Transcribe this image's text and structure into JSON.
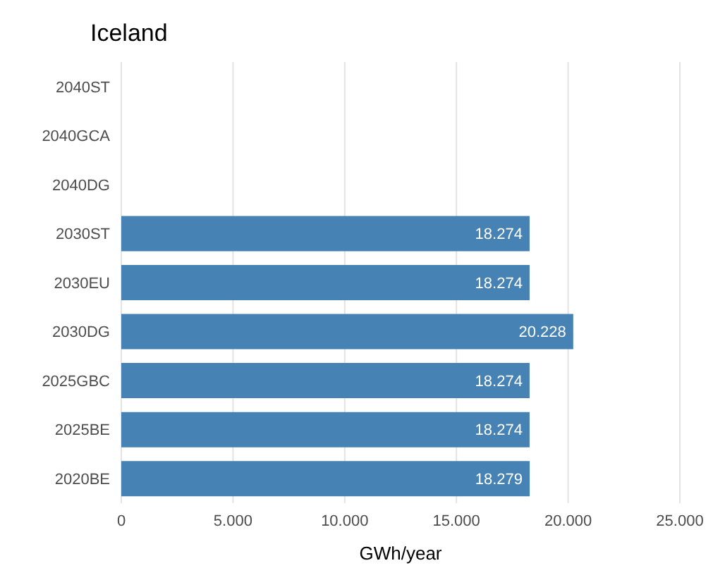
{
  "chart_data": {
    "type": "bar",
    "orientation": "horizontal",
    "title": "Iceland",
    "xlabel": "GWh/year",
    "categories": [
      "2040ST",
      "2040GCA",
      "2040DG",
      "2030ST",
      "2030EU",
      "2030DG",
      "2025GBC",
      "2025BE",
      "2020BE"
    ],
    "values": [
      null,
      null,
      null,
      18274,
      18274,
      20228,
      18274,
      18274,
      18279
    ],
    "value_labels": [
      null,
      null,
      null,
      "18.274",
      "18.274",
      "20.228",
      "18.274",
      "18.274",
      "18.279"
    ],
    "color": "#4682b4",
    "xlim": [
      0,
      25000
    ],
    "xticks": [
      {
        "value": 0,
        "label": "0"
      },
      {
        "value": 5000,
        "label": "5.000"
      },
      {
        "value": 10000,
        "label": "10.000"
      },
      {
        "value": 15000,
        "label": "15.000"
      },
      {
        "value": 20000,
        "label": "20.000"
      },
      {
        "value": 25000,
        "label": "25.000"
      }
    ],
    "grid": "x"
  }
}
